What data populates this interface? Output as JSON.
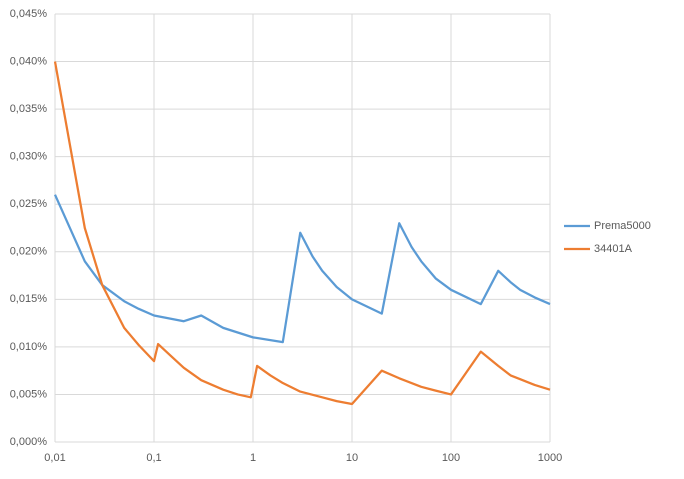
{
  "chart_data": {
    "type": "line",
    "xlog": true,
    "grid": true,
    "legend": "right",
    "xlim": [
      0.01,
      1000
    ],
    "xticks": [
      {
        "value": 0.01,
        "label": "0,01"
      },
      {
        "value": 0.1,
        "label": "0,1"
      },
      1,
      10,
      100,
      1000
    ],
    "ylim": [
      0,
      0.045
    ],
    "yticks": [
      {
        "value": 0,
        "label": "0,000%"
      },
      {
        "value": 0.005,
        "label": "0,005%"
      },
      {
        "value": 0.01,
        "label": "0,010%"
      },
      {
        "value": 0.015,
        "label": "0,015%"
      },
      {
        "value": 0.02,
        "label": "0,020%"
      },
      {
        "value": 0.025,
        "label": "0,025%"
      },
      {
        "value": 0.03,
        "label": "0,030%"
      },
      {
        "value": 0.035,
        "label": "0,035%"
      },
      {
        "value": 0.04,
        "label": "0,040%"
      },
      {
        "value": 0.045,
        "label": "0,045%"
      }
    ],
    "series": [
      {
        "name": "Prema5000",
        "color": "#5b9bd5",
        "x": [
          0.01,
          0.02,
          0.03,
          0.05,
          0.07,
          0.1,
          0.2,
          0.3,
          0.5,
          1,
          2,
          3,
          4,
          5,
          7,
          10,
          20,
          30,
          40,
          50,
          70,
          100,
          200,
          300,
          400,
          500,
          700,
          1000
        ],
        "values": [
          0.026,
          0.019,
          0.0165,
          0.0148,
          0.014,
          0.0133,
          0.0127,
          0.0133,
          0.012,
          0.011,
          0.0105,
          0.022,
          0.0195,
          0.018,
          0.0163,
          0.015,
          0.0135,
          0.023,
          0.0205,
          0.019,
          0.0172,
          0.016,
          0.0145,
          0.018,
          0.0168,
          0.016,
          0.0152,
          0.0145
        ]
      },
      {
        "name": "34401A",
        "color": "#ed7d31",
        "x": [
          0.01,
          0.02,
          0.03,
          0.05,
          0.07,
          0.09,
          0.1,
          0.11,
          0.15,
          0.2,
          0.3,
          0.5,
          0.7,
          0.95,
          1.1,
          1.5,
          2,
          3,
          5,
          7,
          10,
          20,
          30,
          50,
          70,
          100,
          200,
          300,
          400,
          500,
          700,
          1000
        ],
        "values": [
          0.04,
          0.0225,
          0.0165,
          0.012,
          0.0102,
          0.009,
          0.0085,
          0.0103,
          0.009,
          0.0078,
          0.0065,
          0.0055,
          0.005,
          0.0047,
          0.008,
          0.007,
          0.0062,
          0.0053,
          0.0047,
          0.0043,
          0.004,
          0.0075,
          0.0067,
          0.0058,
          0.0054,
          0.005,
          0.0095,
          0.008,
          0.007,
          0.0066,
          0.006,
          0.0055
        ]
      }
    ]
  }
}
